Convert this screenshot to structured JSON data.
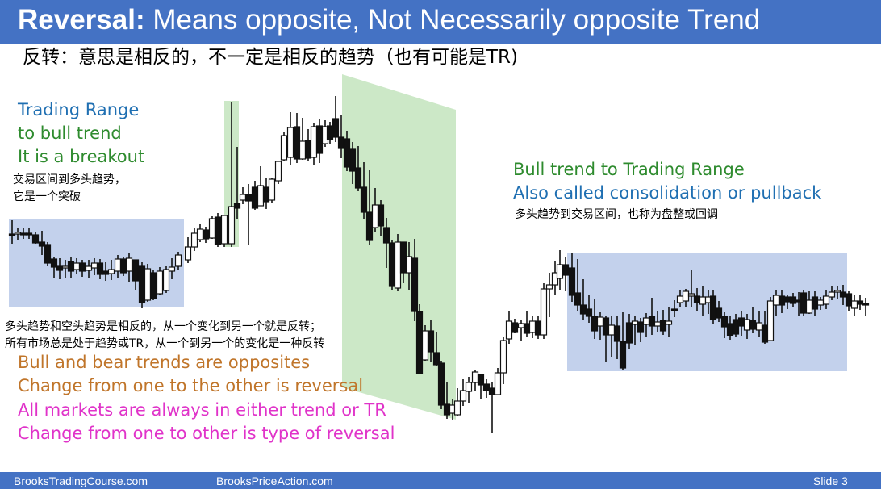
{
  "slide": {
    "title_bold": "Reversal:",
    "title_rest": " Means opposite, Not Necessarily opposite Trend",
    "subtitle": "反转：意思是相反的，不一定是相反的趋势（也有可能是TR)"
  },
  "annotations": {
    "tr_to_bull": {
      "line1": "Trading Range",
      "line2": "to bull trend",
      "line3": "It is a breakout",
      "zh1": "交易区间到多头趋势，",
      "zh2": "它是一个突破"
    },
    "bull_to_tr": {
      "line1": "Bull trend to Trading Range",
      "line2": "Also called consolidation or pullback",
      "zh": "多头趋势到交易区间，也称为盘整或回调"
    },
    "reversal_notes": {
      "zh1": "多头趋势和空头趋势是相反的，从一个变化到另一个就是反转；",
      "zh2": "所有市场总是处于趋势或TR，从一个到另一个的变化是一种反转",
      "line1": "Bull and bear trends are opposites",
      "line2": "Change from one to the other is reversal",
      "line3": "All markets are always in either trend or TR",
      "line4": "Change from one to other is type of reversal"
    }
  },
  "footer": {
    "left": "BrooksTradingCourse.com",
    "center": "BrooksPriceAction.com",
    "right": "Slide  3"
  },
  "colors": {
    "header_bg": "#4472c4",
    "tr_box": "#b4c6e7",
    "trend_box": "#c6e5c1",
    "blue_text": "#1f6fb2",
    "green_text": "#2e8b2e",
    "orange_text": "#c0752a",
    "magenta_text": "#e033c9"
  }
}
